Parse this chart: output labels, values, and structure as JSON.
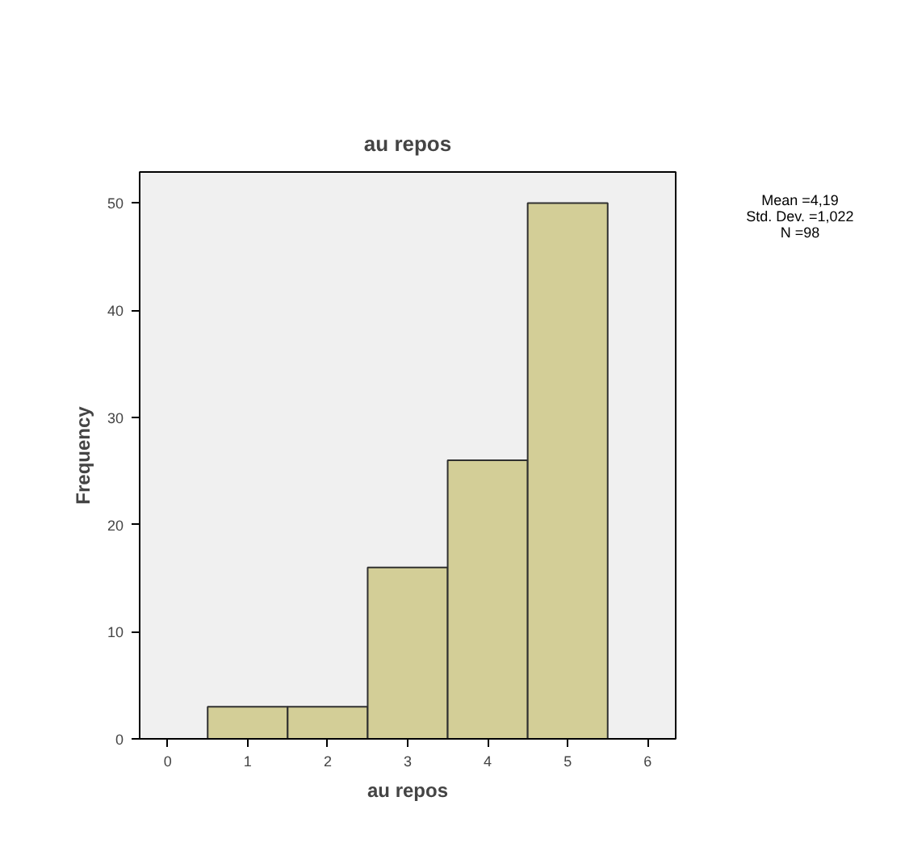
{
  "chart_data": {
    "type": "histogram",
    "title": "au repos",
    "xlabel": "au repos",
    "ylabel": "Frequency",
    "bins": [
      0.5,
      1.5,
      2.5,
      3.5,
      4.5,
      5.5
    ],
    "values": [
      3,
      3,
      16,
      26,
      50
    ],
    "color": "#d3ce97",
    "xlim": [
      -0.35,
      6.35
    ],
    "ylim": [
      0,
      52.9
    ],
    "xticks": [
      0,
      1,
      2,
      3,
      4,
      5,
      6
    ],
    "yticks": [
      0,
      10,
      20,
      30,
      40,
      50
    ],
    "grid": false,
    "annotations": [
      "Mean =4,19",
      "Std. Dev. =1,022",
      "N =98"
    ]
  }
}
